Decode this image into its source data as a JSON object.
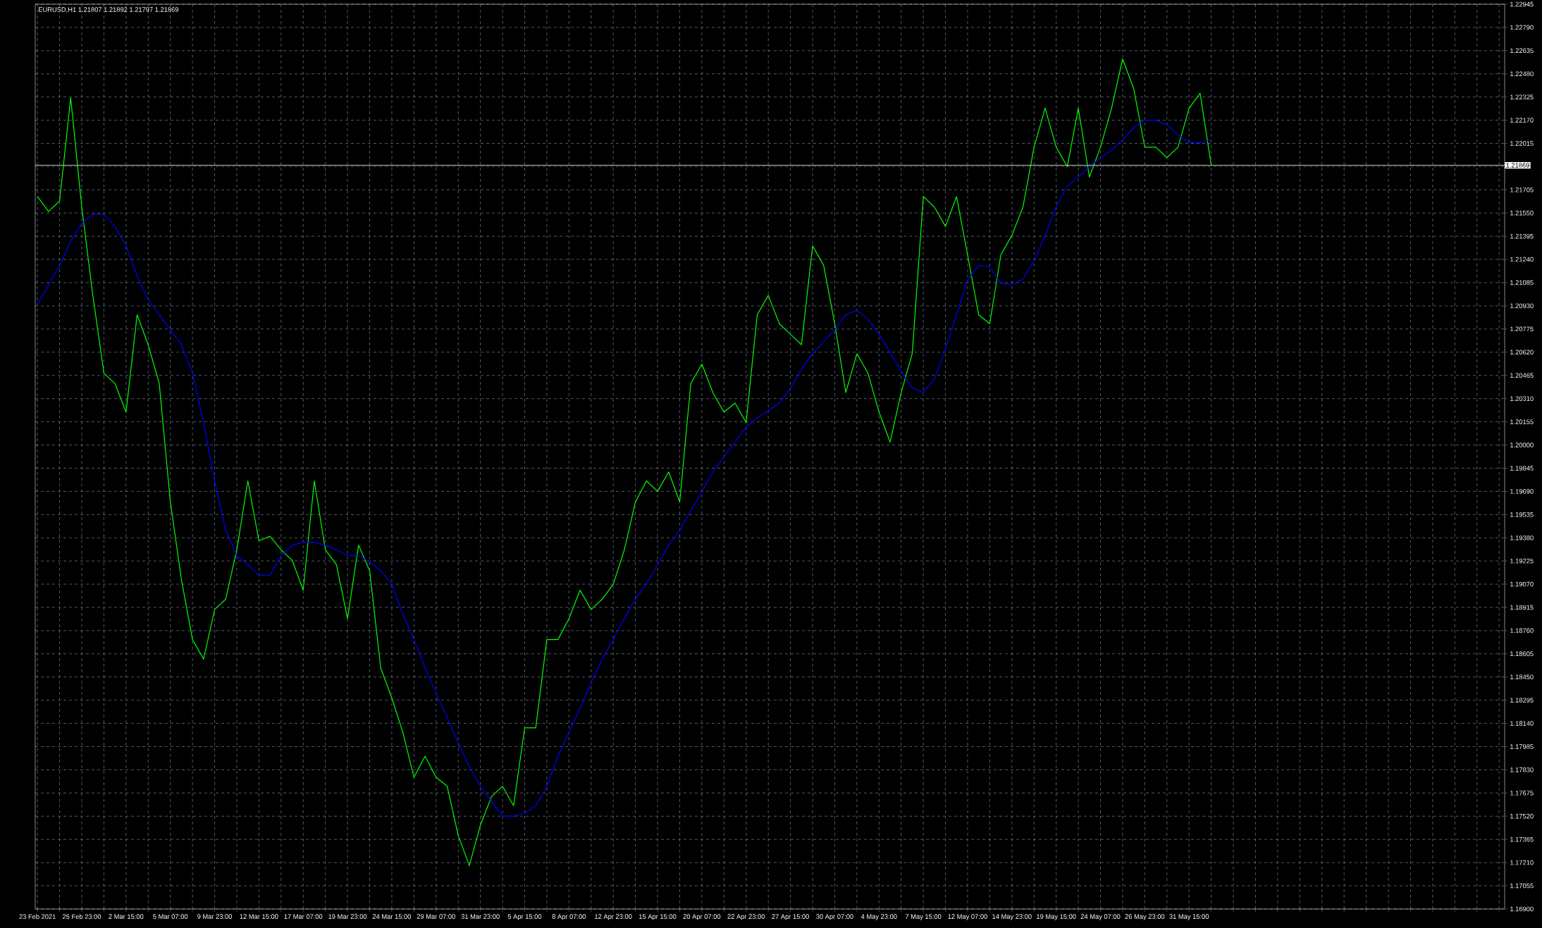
{
  "chart_data": {
    "type": "line",
    "title": "EURUSD,H1  1.21807 1.21892 1.21797 1.21869",
    "categories": [
      "23 Feb 2021",
      null,
      null,
      null,
      "25 Feb 23:00",
      null,
      null,
      null,
      "2 Mar 15:00",
      null,
      null,
      null,
      "5 Mar 07:00",
      null,
      null,
      null,
      "9 Mar 23:00",
      null,
      null,
      null,
      "12 Mar 15:00",
      null,
      null,
      null,
      "17 Mar 07:00",
      null,
      null,
      null,
      "19 Mar 23:00",
      null,
      null,
      null,
      "24 Mar 15:00",
      null,
      null,
      null,
      "29 Mar 07:00",
      null,
      null,
      null,
      "31 Mar 23:00",
      null,
      null,
      null,
      "5 Apr 15:00",
      null,
      null,
      null,
      "8 Apr 07:00",
      null,
      null,
      null,
      "12 Apr 23:00",
      null,
      null,
      null,
      "15 Apr 15:00",
      null,
      null,
      null,
      "20 Apr 07:00",
      null,
      null,
      null,
      "22 Apr 23:00",
      null,
      null,
      null,
      "27 Apr 15:00",
      null,
      null,
      null,
      "30 Apr 07:00",
      null,
      null,
      null,
      "4 May 23:00",
      null,
      null,
      null,
      "7 May 15:00",
      null,
      null,
      null,
      "12 May 07:00",
      null,
      null,
      null,
      "14 May 23:00",
      null,
      null,
      null,
      "19 May 15:00",
      null,
      null,
      null,
      "24 May 07:00",
      null,
      null,
      null,
      "26 May 23:00",
      null,
      null,
      null,
      "31 May 15:00",
      null,
      null
    ],
    "series": [
      {
        "color": "#00ff00",
        "values": [
          1.2166,
          1.2156,
          1.2163,
          1.2232,
          1.2159,
          1.21,
          1.2048,
          1.2041,
          1.2022,
          1.2087,
          1.2067,
          1.2041,
          1.1962,
          1.191,
          1.187,
          1.1857,
          1.189,
          1.1897,
          1.193,
          1.1976,
          1.1936,
          1.1939,
          1.193,
          1.1923,
          1.1903,
          1.1976,
          1.193,
          1.192,
          1.1884,
          1.1933,
          1.1916,
          1.1851,
          1.1831,
          1.1808,
          1.1778,
          1.1792,
          1.1778,
          1.1772,
          1.1739,
          1.1719,
          1.1746,
          1.1765,
          1.1772,
          1.1759,
          1.1811,
          1.1811,
          1.187,
          1.187,
          1.1884,
          1.1903,
          1.189,
          1.1897,
          1.1907,
          1.193,
          1.1962,
          1.1976,
          1.1969,
          1.1982,
          1.1962,
          1.2041,
          1.2054,
          1.2035,
          1.2022,
          1.2028,
          1.2015,
          1.2087,
          1.21,
          1.2081,
          1.2074,
          1.2067,
          1.2133,
          1.212,
          1.2081,
          1.2035,
          1.2061,
          1.2048,
          1.2022,
          1.2002,
          1.2035,
          1.2061,
          1.2166,
          1.2159,
          1.2146,
          1.2166,
          1.2127,
          1.2087,
          1.2081,
          1.2127,
          1.214,
          1.2159,
          1.2199,
          1.2225,
          1.2199,
          1.2186,
          1.2225,
          1.2179,
          1.2199,
          1.2225,
          1.2258,
          1.2238,
          1.2199,
          1.2199,
          1.2192,
          1.2199,
          1.2225,
          1.2235,
          1.2187
        ]
      },
      {
        "color": "#0000ff",
        "values": [
          1.2094,
          1.2107,
          1.212,
          1.2136,
          1.2148,
          1.2154,
          1.2154,
          1.2146,
          1.2133,
          1.2113,
          1.2097,
          1.2087,
          1.2077,
          1.2067,
          1.2048,
          1.2015,
          1.1976,
          1.1943,
          1.1926,
          1.192,
          1.1913,
          1.1913,
          1.1926,
          1.1933,
          1.1935,
          1.1935,
          1.1933,
          1.193,
          1.1926,
          1.1926,
          1.1922,
          1.1916,
          1.1907,
          1.1887,
          1.187,
          1.1851,
          1.1834,
          1.1818,
          1.1801,
          1.1785,
          1.1772,
          1.1762,
          1.1752,
          1.1752,
          1.1754,
          1.1759,
          1.1772,
          1.1792,
          1.1808,
          1.1824,
          1.1841,
          1.1857,
          1.187,
          1.1884,
          1.1897,
          1.1907,
          1.192,
          1.1933,
          1.1943,
          1.1956,
          1.1969,
          1.1982,
          1.1992,
          1.2002,
          1.2012,
          1.2018,
          1.2023,
          1.2028,
          1.2038,
          1.2051,
          1.2061,
          1.2069,
          1.2077,
          1.2087,
          1.209,
          1.2084,
          1.2074,
          1.2062,
          1.2049,
          1.2038,
          1.2035,
          1.2044,
          1.2064,
          1.2087,
          1.211,
          1.212,
          1.2119,
          1.2108,
          1.2107,
          1.2111,
          1.2123,
          1.214,
          1.2159,
          1.2173,
          1.2179,
          1.2186,
          1.2192,
          1.2197,
          1.2204,
          1.2212,
          1.2217,
          1.2217,
          1.2214,
          1.2207,
          1.2202,
          1.2202,
          1.2204
        ]
      }
    ],
    "ylim": [
      1.169,
      1.22945
    ],
    "yticks": [
      {
        "value": 1.169,
        "label": "1.16900"
      },
      {
        "value": 1.17055,
        "label": "1.17055"
      },
      {
        "value": 1.1721,
        "label": "1.17210"
      },
      {
        "value": 1.17365,
        "label": "1.17365"
      },
      {
        "value": 1.1752,
        "label": "1.17520"
      },
      {
        "value": 1.17675,
        "label": "1.17675"
      },
      {
        "value": 1.1783,
        "label": "1.17830"
      },
      {
        "value": 1.17985,
        "label": "1.17985"
      },
      {
        "value": 1.1814,
        "label": "1.18140"
      },
      {
        "value": 1.18295,
        "label": "1.18295"
      },
      {
        "value": 1.1845,
        "label": "1.18450"
      },
      {
        "value": 1.18605,
        "label": "1.18605"
      },
      {
        "value": 1.1876,
        "label": "1.18760"
      },
      {
        "value": 1.18915,
        "label": "1.18915"
      },
      {
        "value": 1.1907,
        "label": "1.19070"
      },
      {
        "value": 1.19225,
        "label": "1.19225"
      },
      {
        "value": 1.1938,
        "label": "1.19380"
      },
      {
        "value": 1.19535,
        "label": "1.19535"
      },
      {
        "value": 1.1969,
        "label": "1.19690"
      },
      {
        "value": 1.19845,
        "label": "1.19845"
      },
      {
        "value": 1.2,
        "label": "1.20000"
      },
      {
        "value": 1.20155,
        "label": "1.20155"
      },
      {
        "value": 1.2031,
        "label": "1.20310"
      },
      {
        "value": 1.20465,
        "label": "1.20465"
      },
      {
        "value": 1.2062,
        "label": "1.20620"
      },
      {
        "value": 1.20775,
        "label": "1.20775"
      },
      {
        "value": 1.2093,
        "label": "1.20930"
      },
      {
        "value": 1.21085,
        "label": "1.21085"
      },
      {
        "value": 1.2124,
        "label": "1.21240"
      },
      {
        "value": 1.21395,
        "label": "1.21395"
      },
      {
        "value": 1.2155,
        "label": "1.21550"
      },
      {
        "value": 1.21705,
        "label": "1.21705"
      },
      {
        "value": 1.2186,
        "label": null
      },
      {
        "value": 1.22015,
        "label": "1.22015"
      },
      {
        "value": 1.2217,
        "label": "1.22170"
      },
      {
        "value": 1.22325,
        "label": "1.22325"
      },
      {
        "value": 1.2248,
        "label": "1.22480"
      },
      {
        "value": 1.22635,
        "label": "1.22635"
      },
      {
        "value": 1.2279,
        "label": "1.22790"
      },
      {
        "value": 1.22945,
        "label": "1.22945"
      }
    ],
    "grid": true,
    "ref_lines": [
      {
        "axis": "y",
        "value": 1.21869,
        "label": "1.21869",
        "color": "#c0c0c0"
      }
    ]
  }
}
